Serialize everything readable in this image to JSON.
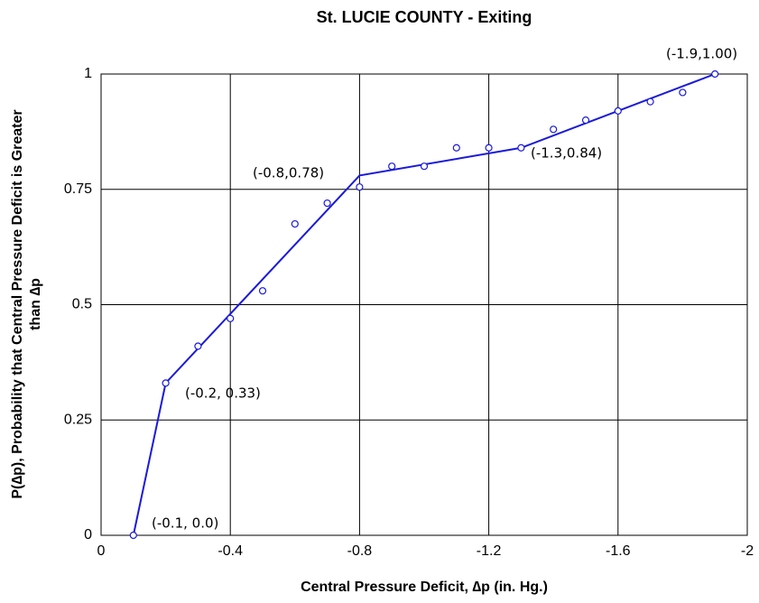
{
  "chart_data": {
    "type": "scatter",
    "title": "St. LUCIE COUNTY - Exiting",
    "x_label": "Central Pressure Deficit, ∆p (in. Hg.)",
    "y_label": [
      "P(∆p), Probability that Central Pressure Deficit is Greater",
      "than ∆p"
    ],
    "xlim": [
      0,
      -2
    ],
    "xticks": [
      0,
      -0.4,
      -0.8,
      -1.2,
      -1.6,
      -2
    ],
    "ylim": [
      0,
      1
    ],
    "yticks": [
      0,
      0.25,
      0.5,
      0.75,
      1
    ],
    "grid": true,
    "series": [
      {
        "color": "#1a1adb",
        "marker": "circle",
        "x": [
          -0.1,
          -0.2,
          -0.3,
          -0.4,
          -0.5,
          -0.6,
          -0.7,
          -0.8,
          -0.9,
          -1.0,
          -1.1,
          -1.2,
          -1.3,
          -1.4,
          -1.5,
          -1.6,
          -1.7,
          -1.8,
          -1.9
        ],
        "values": [
          0,
          0.33,
          0.41,
          0.47,
          0.53,
          0.675,
          0.72,
          0.755,
          0.8,
          0.8,
          0.84,
          0.84,
          0.84,
          0.88,
          0.9,
          0.92,
          0.94,
          0.96,
          1.0
        ]
      }
    ],
    "line": {
      "color": "#1a1adb",
      "x": [
        -0.1,
        -0.2,
        -0.8,
        -1.3,
        -1.9
      ],
      "values": [
        0,
        0.33,
        0.78,
        0.84,
        1.0
      ]
    },
    "annotations": [
      "(-0.1, 0.0)",
      "(-0.2, 0.33)",
      "(-0.8,0.78)",
      "(-1.3,0.84)",
      "(-1.9,1.00)"
    ]
  }
}
